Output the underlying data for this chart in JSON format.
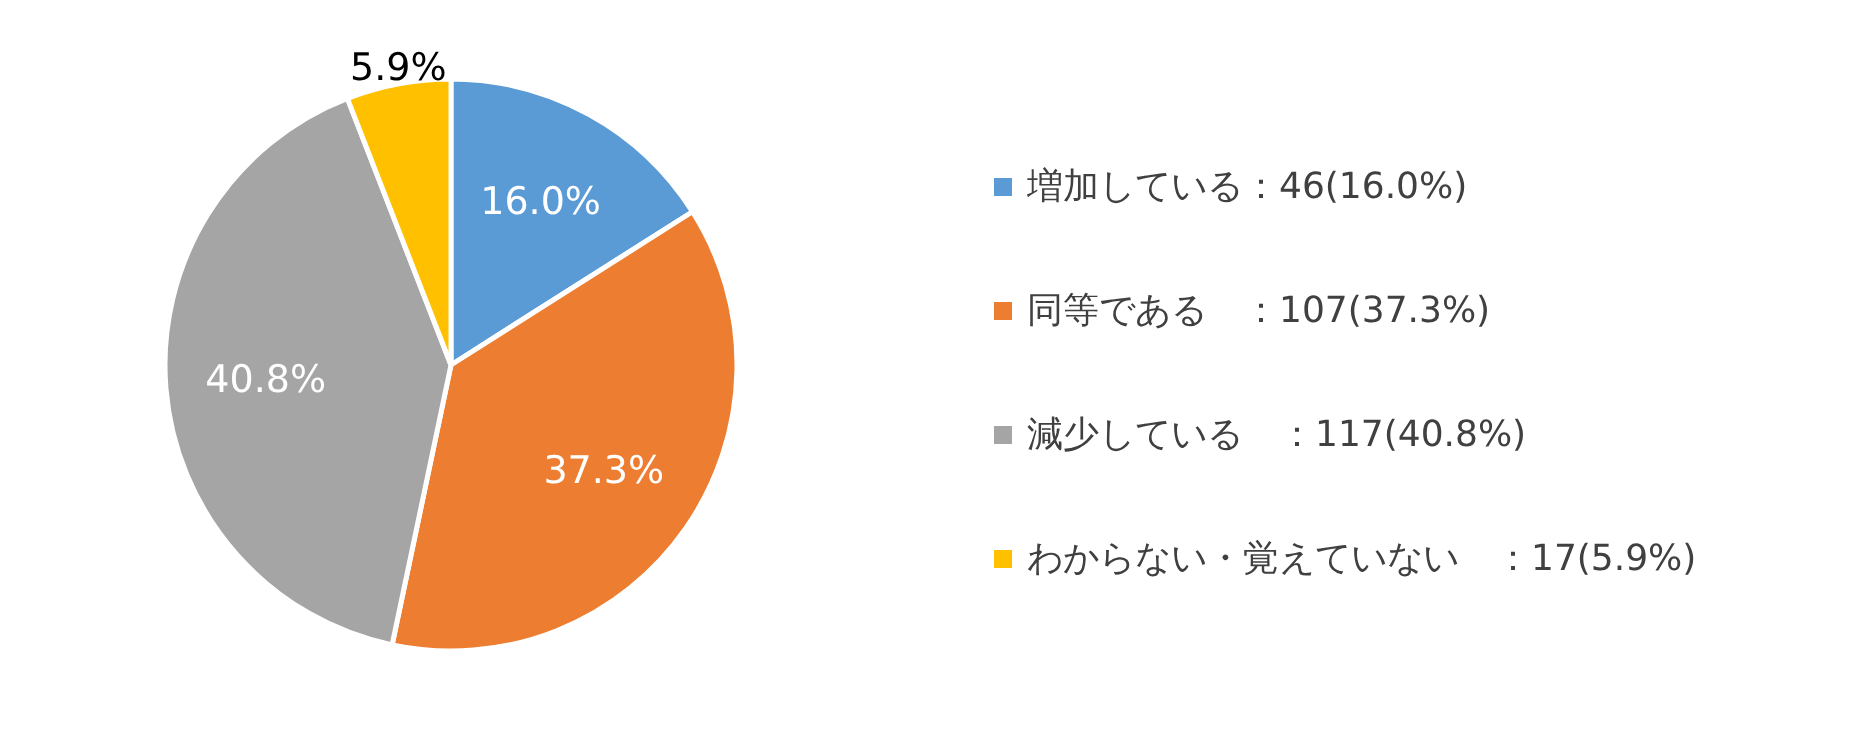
{
  "chart_data": {
    "type": "pie",
    "categories": [
      "増加している：46(16.0%)",
      "同等である　：107(37.3%)",
      "減少している　：117(40.8%)",
      "わからない・覚えていない　：17(5.9%)"
    ],
    "values": [
      16.0,
      37.3,
      40.8,
      5.9
    ],
    "colors": [
      "#5b9bd5",
      "#ed7d31",
      "#a5a5a5",
      "#ffc000"
    ],
    "value_labels": [
      "16.0%",
      "37.3%",
      "40.8%",
      "5.9%"
    ],
    "legend": "right"
  }
}
